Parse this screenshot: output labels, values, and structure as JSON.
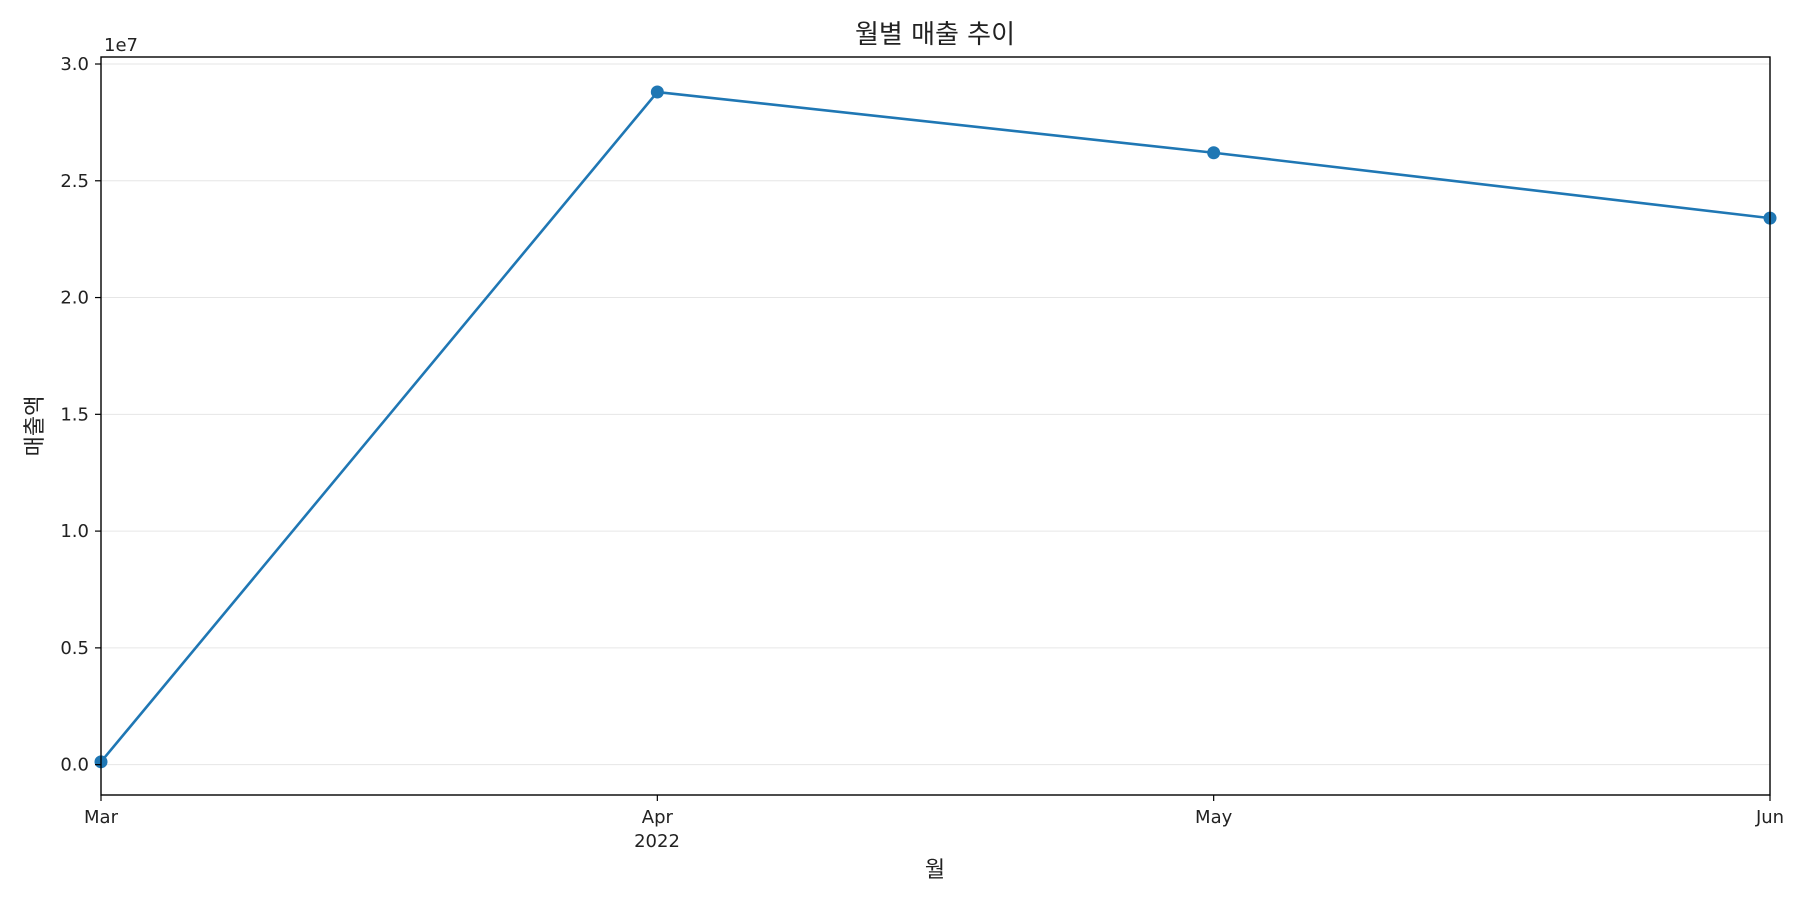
{
  "chart_data": {
    "type": "line",
    "title": "월별 매출 추이",
    "xlabel": "월",
    "ylabel": "매출액",
    "y_offset_label": "1e7",
    "x_tick_labels": [
      "Mar",
      "Apr",
      "May",
      "Jun"
    ],
    "x_year_label": "2022",
    "x": [
      "2022-03",
      "2022-04",
      "2022-05",
      "2022-06"
    ],
    "series": [
      {
        "values": [
          120000,
          28800000,
          26200000,
          23400000
        ],
        "color": "#1f77b4",
        "marker": "circle"
      }
    ],
    "ylim": [
      -1300000,
      30300000
    ],
    "y_ticks": [
      0,
      5000000,
      10000000,
      15000000,
      20000000,
      25000000,
      30000000
    ],
    "y_tick_labels": [
      "0.0",
      "0.5",
      "1.0",
      "1.5",
      "2.0",
      "2.5",
      "3.0"
    ],
    "grid": "horizontal",
    "grid_color": "#e6e6e6",
    "legend": "none"
  }
}
